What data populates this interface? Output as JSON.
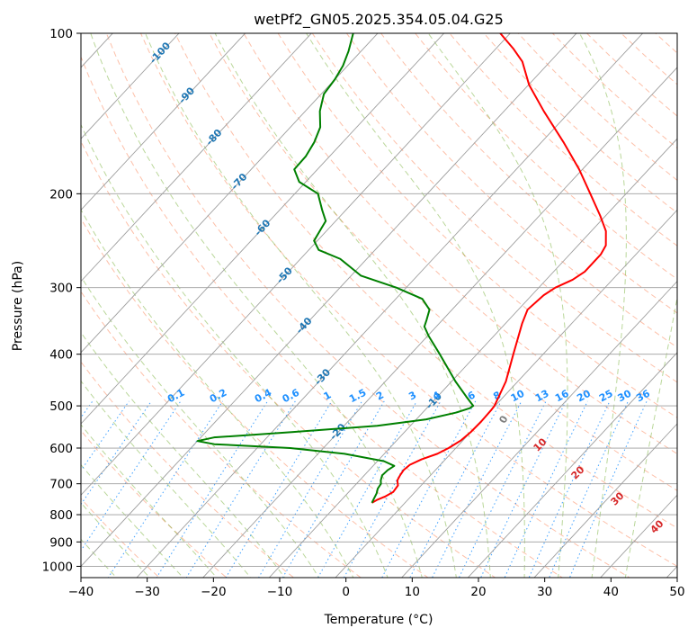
{
  "chart_data": {
    "type": "line",
    "title": "wetPf2_GN05.2025.354.05.04.G25",
    "xlabel": "Temperature (°C)",
    "ylabel": "Pressure (hPa)",
    "xlim": [
      -40,
      50
    ],
    "ylim": [
      1050,
      100
    ],
    "y_scale": "log",
    "x_ticks": [
      -40,
      -30,
      -20,
      -10,
      0,
      10,
      20,
      30,
      40,
      50
    ],
    "y_ticks": [
      100,
      200,
      300,
      400,
      500,
      600,
      700,
      800,
      900,
      1000
    ],
    "x_tick_labels": [
      "−40",
      "−30",
      "−20",
      "−10",
      "0",
      "10",
      "20",
      "30",
      "40",
      "50"
    ],
    "y_tick_labels": [
      "100",
      "200",
      "300",
      "400",
      "500",
      "600",
      "700",
      "800",
      "900",
      "1000"
    ],
    "grid": true,
    "isotherm_labels": [
      {
        "t": -100,
        "label": "-100"
      },
      {
        "t": -90,
        "label": "-90"
      },
      {
        "t": -80,
        "label": "-80"
      },
      {
        "t": -70,
        "label": "-70"
      },
      {
        "t": -60,
        "label": "-60"
      },
      {
        "t": -50,
        "label": "-50"
      },
      {
        "t": -40,
        "label": "-40"
      },
      {
        "t": -30,
        "label": "-30"
      },
      {
        "t": -20,
        "label": "-20"
      },
      {
        "t": -10,
        "label": "-10"
      }
    ],
    "mixing_ratio_labels": [
      "0.1",
      "0.2",
      "0.4",
      "0.6",
      "1",
      "1.5",
      "2",
      "3",
      "4",
      "6",
      "8",
      "10",
      "13",
      "16",
      "20",
      "25",
      "30",
      "36"
    ],
    "dry_adiabat_labels": [
      "10",
      "20",
      "30",
      "40"
    ],
    "moist_adiabat_labels": [
      "0"
    ],
    "series": [
      {
        "name": "",
        "color": "#ff0000",
        "points": [
          [
            760,
            -5.0
          ],
          [
            750,
            -4.6
          ],
          [
            740,
            -3.9
          ],
          [
            725,
            -3.3
          ],
          [
            705,
            -3.5
          ],
          [
            690,
            -4.3
          ],
          [
            675,
            -4.6
          ],
          [
            660,
            -4.8
          ],
          [
            645,
            -4.6
          ],
          [
            630,
            -3.6
          ],
          [
            615,
            -2.0
          ],
          [
            600,
            -1.1
          ],
          [
            580,
            -0.3
          ],
          [
            560,
            0.0
          ],
          [
            535,
            0.1
          ],
          [
            510,
            0.0
          ],
          [
            500,
            -0.1
          ],
          [
            450,
            -1.8
          ],
          [
            400,
            -4.5
          ],
          [
            350,
            -7.5
          ],
          [
            330,
            -8.6
          ],
          [
            310,
            -8.2
          ],
          [
            300,
            -7.5
          ],
          [
            290,
            -6.0
          ],
          [
            280,
            -5.3
          ],
          [
            270,
            -5.3
          ],
          [
            260,
            -5.3
          ],
          [
            250,
            -5.8
          ],
          [
            235,
            -7.8
          ],
          [
            220,
            -10.8
          ],
          [
            200,
            -15.4
          ],
          [
            180,
            -20.5
          ],
          [
            160,
            -26.7
          ],
          [
            140,
            -34.0
          ],
          [
            125,
            -39.9
          ],
          [
            113,
            -44.2
          ],
          [
            107,
            -47.3
          ],
          [
            100,
            -51.5
          ]
        ]
      },
      {
        "name": "",
        "color": "#008000",
        "points": [
          [
            760,
            -5.0
          ],
          [
            745,
            -5.3
          ],
          [
            730,
            -5.6
          ],
          [
            715,
            -6.1
          ],
          [
            700,
            -6.3
          ],
          [
            690,
            -6.8
          ],
          [
            675,
            -7.3
          ],
          [
            660,
            -7.2
          ],
          [
            648,
            -6.8
          ],
          [
            635,
            -9.0
          ],
          [
            615,
            -16.0
          ],
          [
            600,
            -25.0
          ],
          [
            590,
            -37.0
          ],
          [
            582,
            -40.0
          ],
          [
            573,
            -38.0
          ],
          [
            560,
            -27.0
          ],
          [
            545,
            -15.0
          ],
          [
            530,
            -8.5
          ],
          [
            515,
            -5.0
          ],
          [
            505,
            -3.5
          ],
          [
            500,
            -3.3
          ],
          [
            480,
            -5.7
          ],
          [
            450,
            -9.4
          ],
          [
            400,
            -15.6
          ],
          [
            370,
            -19.8
          ],
          [
            355,
            -21.8
          ],
          [
            345,
            -22.4
          ],
          [
            330,
            -23.4
          ],
          [
            315,
            -26.0
          ],
          [
            300,
            -31.5
          ],
          [
            285,
            -38.5
          ],
          [
            275,
            -41.2
          ],
          [
            265,
            -44.0
          ],
          [
            255,
            -48.5
          ],
          [
            245,
            -50.5
          ],
          [
            235,
            -51.0
          ],
          [
            225,
            -51.5
          ],
          [
            215,
            -53.5
          ],
          [
            200,
            -56.5
          ],
          [
            190,
            -61.0
          ],
          [
            180,
            -63.5
          ],
          [
            170,
            -63.6
          ],
          [
            160,
            -64.3
          ],
          [
            150,
            -65.5
          ],
          [
            140,
            -67.8
          ],
          [
            130,
            -69.6
          ],
          [
            122,
            -70.0
          ],
          [
            115,
            -70.7
          ],
          [
            108,
            -71.9
          ],
          [
            100,
            -73.7
          ]
        ]
      }
    ]
  }
}
